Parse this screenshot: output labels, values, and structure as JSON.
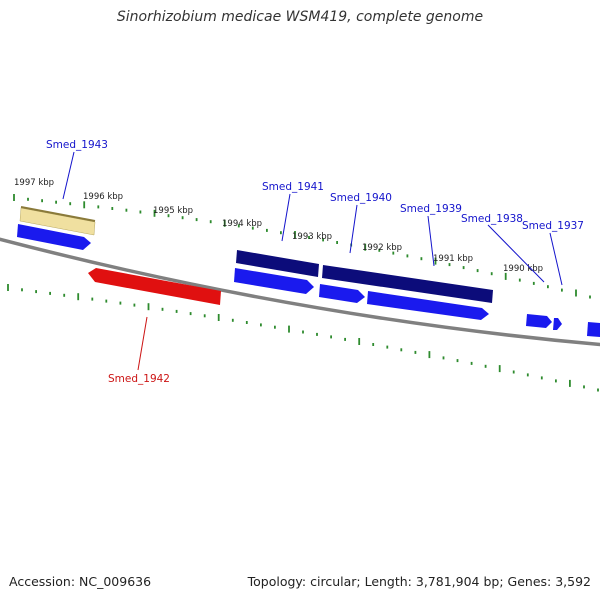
{
  "title": "Sinorhizobium medicae WSM419, complete genome",
  "footer": {
    "accession": "Accession: NC_009636",
    "summary": "Topology: circular; Length: 3,781,904 bp; Genes: 3,592"
  },
  "colors": {
    "backbone": "#808080",
    "tick": "#2e8b2e",
    "forward_gene": "#1a1aee",
    "cds_dark": "#0c0c7a",
    "reverse_gene": "#e01010",
    "pseudo_gene": "#f0e0a0",
    "label_blue": "#1414cc",
    "label_red": "#cc1414"
  },
  "scale_labels": [
    {
      "text": "1997 kbp"
    },
    {
      "text": "1996 kbp"
    },
    {
      "text": "1995 kbp"
    },
    {
      "text": "1994 kbp"
    },
    {
      "text": "1993 kbp"
    },
    {
      "text": "1992 kbp"
    },
    {
      "text": "1991 kbp"
    },
    {
      "text": "1990 kbp"
    }
  ],
  "gene_labels": [
    {
      "text": "Smed_1943",
      "strand": "forward"
    },
    {
      "text": "Smed_1942",
      "strand": "reverse"
    },
    {
      "text": "Smed_1941",
      "strand": "forward"
    },
    {
      "text": "Smed_1940",
      "strand": "forward"
    },
    {
      "text": "Smed_1939",
      "strand": "forward"
    },
    {
      "text": "Smed_1938",
      "strand": "forward"
    },
    {
      "text": "Smed_1937",
      "strand": "forward"
    }
  ]
}
